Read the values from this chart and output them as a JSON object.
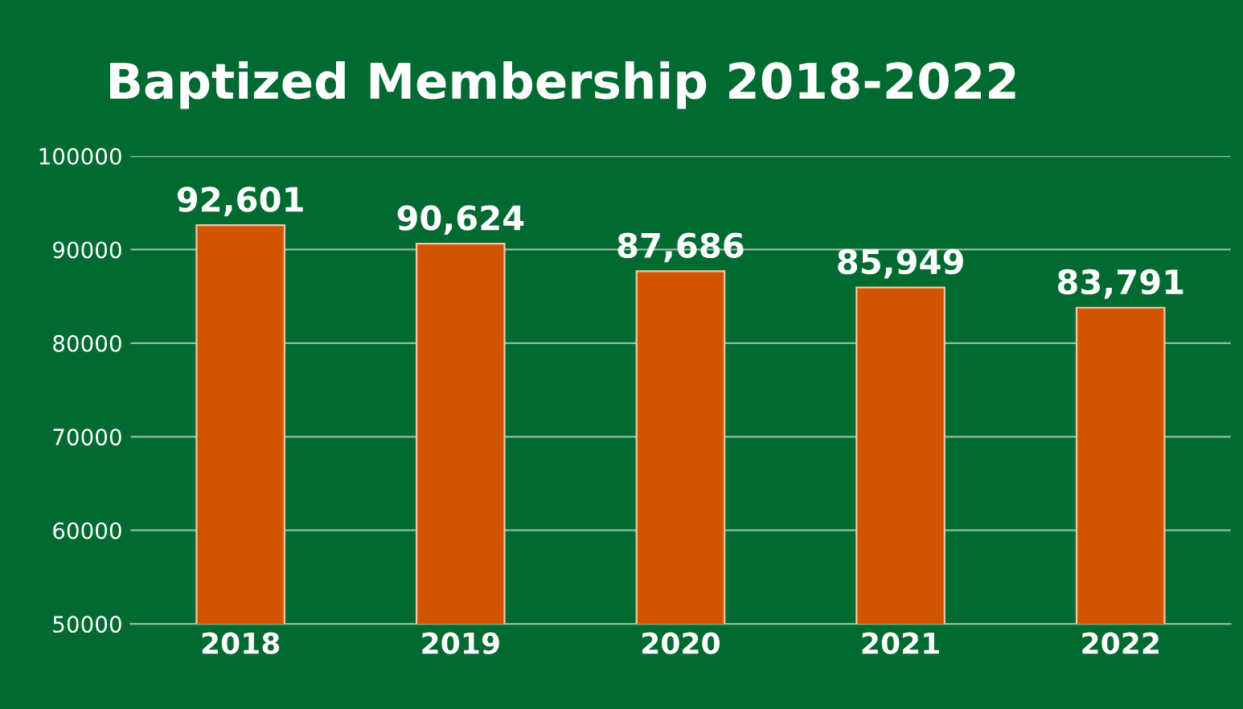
{
  "chart_data": {
    "type": "bar",
    "title": "Baptized Membership 2018-2022",
    "categories": [
      "2018",
      "2019",
      "2020",
      "2021",
      "2022"
    ],
    "values": [
      92601,
      90624,
      87686,
      85949,
      83791
    ],
    "value_labels": [
      "92,601",
      "90,624",
      "87,686",
      "85,949",
      "83,791"
    ],
    "color": "#d35400",
    "ylim": [
      50000,
      100000
    ],
    "yticks": [
      50000,
      60000,
      70000,
      80000,
      90000,
      100000
    ],
    "grid": "y",
    "legend": false
  }
}
